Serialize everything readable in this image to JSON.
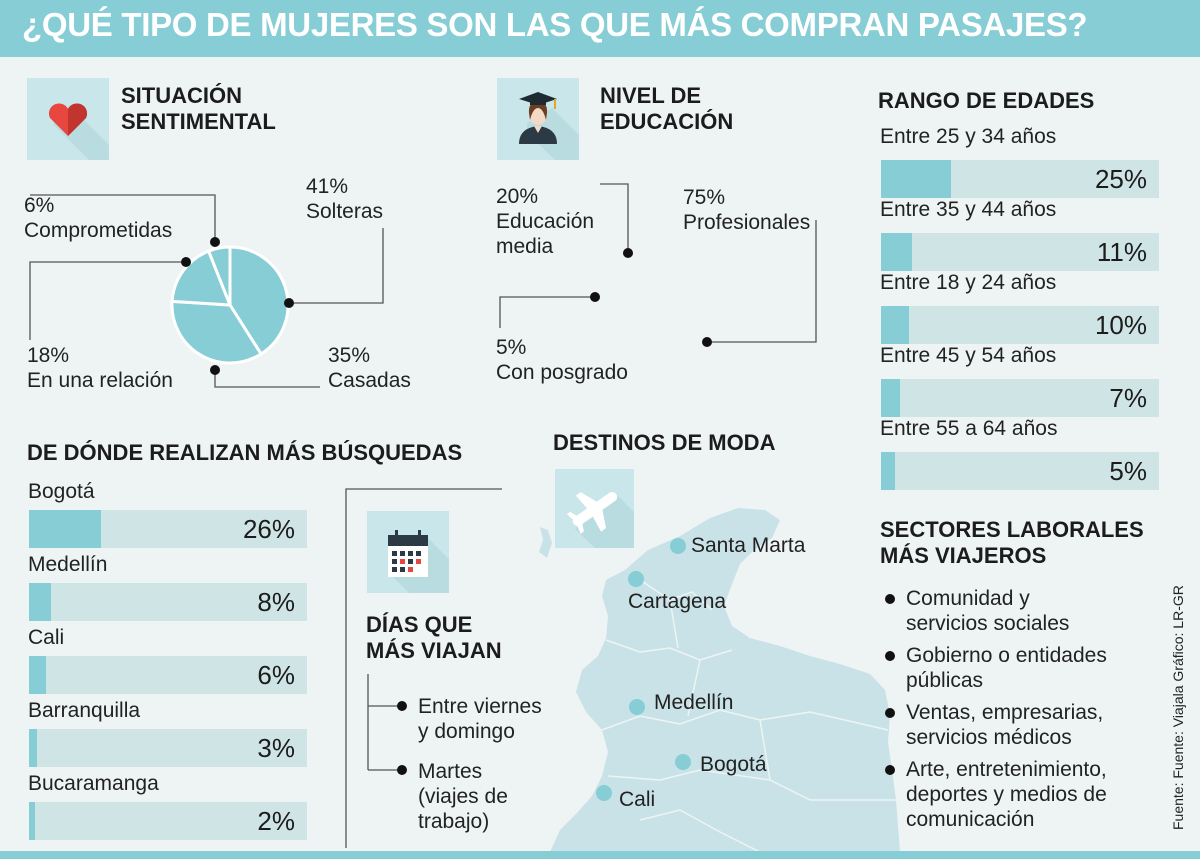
{
  "title": "¿QUÉ TIPO DE MUJERES SON LAS QUE MÁS COMPRAN PASAJES?",
  "colors": {
    "accent": "#86cdd5",
    "track": "#cfe5e5",
    "background": "#eef4f4",
    "icon_bg": "#c9e6ea"
  },
  "chart_data": [
    {
      "type": "pie",
      "title": "SITUACIÓN SENTIMENTAL",
      "slices": [
        {
          "label": "Solteras",
          "value": 41,
          "display": "41%"
        },
        {
          "label": "Casadas",
          "value": 35,
          "display": "35%"
        },
        {
          "label": "En una relación",
          "value": 18,
          "display": "18%"
        },
        {
          "label": "Comprometidas",
          "value": 6,
          "display": "6%"
        }
      ]
    },
    {
      "type": "pie",
      "title": "NIVEL DE EDUCACIÓN",
      "slices": [
        {
          "label": "Profesionales",
          "value": 75,
          "display": "75%"
        },
        {
          "label": "Con posgrado",
          "value": 5,
          "display": "5%"
        },
        {
          "label": "Educación media",
          "value": 20,
          "display": "20%"
        }
      ]
    },
    {
      "type": "bar",
      "title": "RANGO DE EDADES",
      "categories": [
        "Entre 25 y 34 años",
        "Entre 35 y 44 años",
        "Entre 18 y 24 años",
        "Entre 45 y 54 años",
        "Entre 55 a 64 años"
      ],
      "values": [
        25,
        11,
        10,
        7,
        5
      ],
      "display": [
        "25%",
        "11%",
        "10%",
        "7%",
        "5%"
      ],
      "xlim": [
        0,
        100
      ]
    },
    {
      "type": "bar",
      "title": "DE DÓNDE REALIZAN MÁS BÚSQUEDAS",
      "categories": [
        "Bogotá",
        "Medellín",
        "Cali",
        "Barranquilla",
        "Bucaramanga"
      ],
      "values": [
        26,
        8,
        6,
        3,
        2
      ],
      "display": [
        "26%",
        "8%",
        "6%",
        "3%",
        "2%"
      ],
      "xlim": [
        0,
        100
      ]
    }
  ],
  "destinos": {
    "title": "DESTINOS DE MODA",
    "icon": "airplane-icon",
    "cities": [
      "Santa Marta",
      "Cartagena",
      "Medellín",
      "Bogotá",
      "Cali"
    ]
  },
  "dias": {
    "title_line1": "DÍAS QUE",
    "title_line2": "MÁS VIAJAN",
    "icon": "calendar-icon",
    "items": [
      "Entre viernes\ny domingo",
      "Martes\n(viajes de\ntrabajo)"
    ]
  },
  "sectores": {
    "title_line1": "SECTORES LABORALES",
    "title_line2": "MÁS VIAJEROS",
    "items": [
      "Comunidad y\nservicios sociales",
      "Gobierno o entidades\npúblicas",
      "Ventas, empresarias,\nservicios médicos",
      "Arte, entretenimiento,\ndeportes y medios de\ncomunicación"
    ]
  },
  "sentimental_title": {
    "line1": "SITUACIÓN",
    "line2": "SENTIMENTAL"
  },
  "education_title": {
    "line1": "NIVEL DE",
    "line2": "EDUCACIÓN"
  },
  "credit": "Fuente: Fuente: Viajala    Gráfico: LR-GR"
}
